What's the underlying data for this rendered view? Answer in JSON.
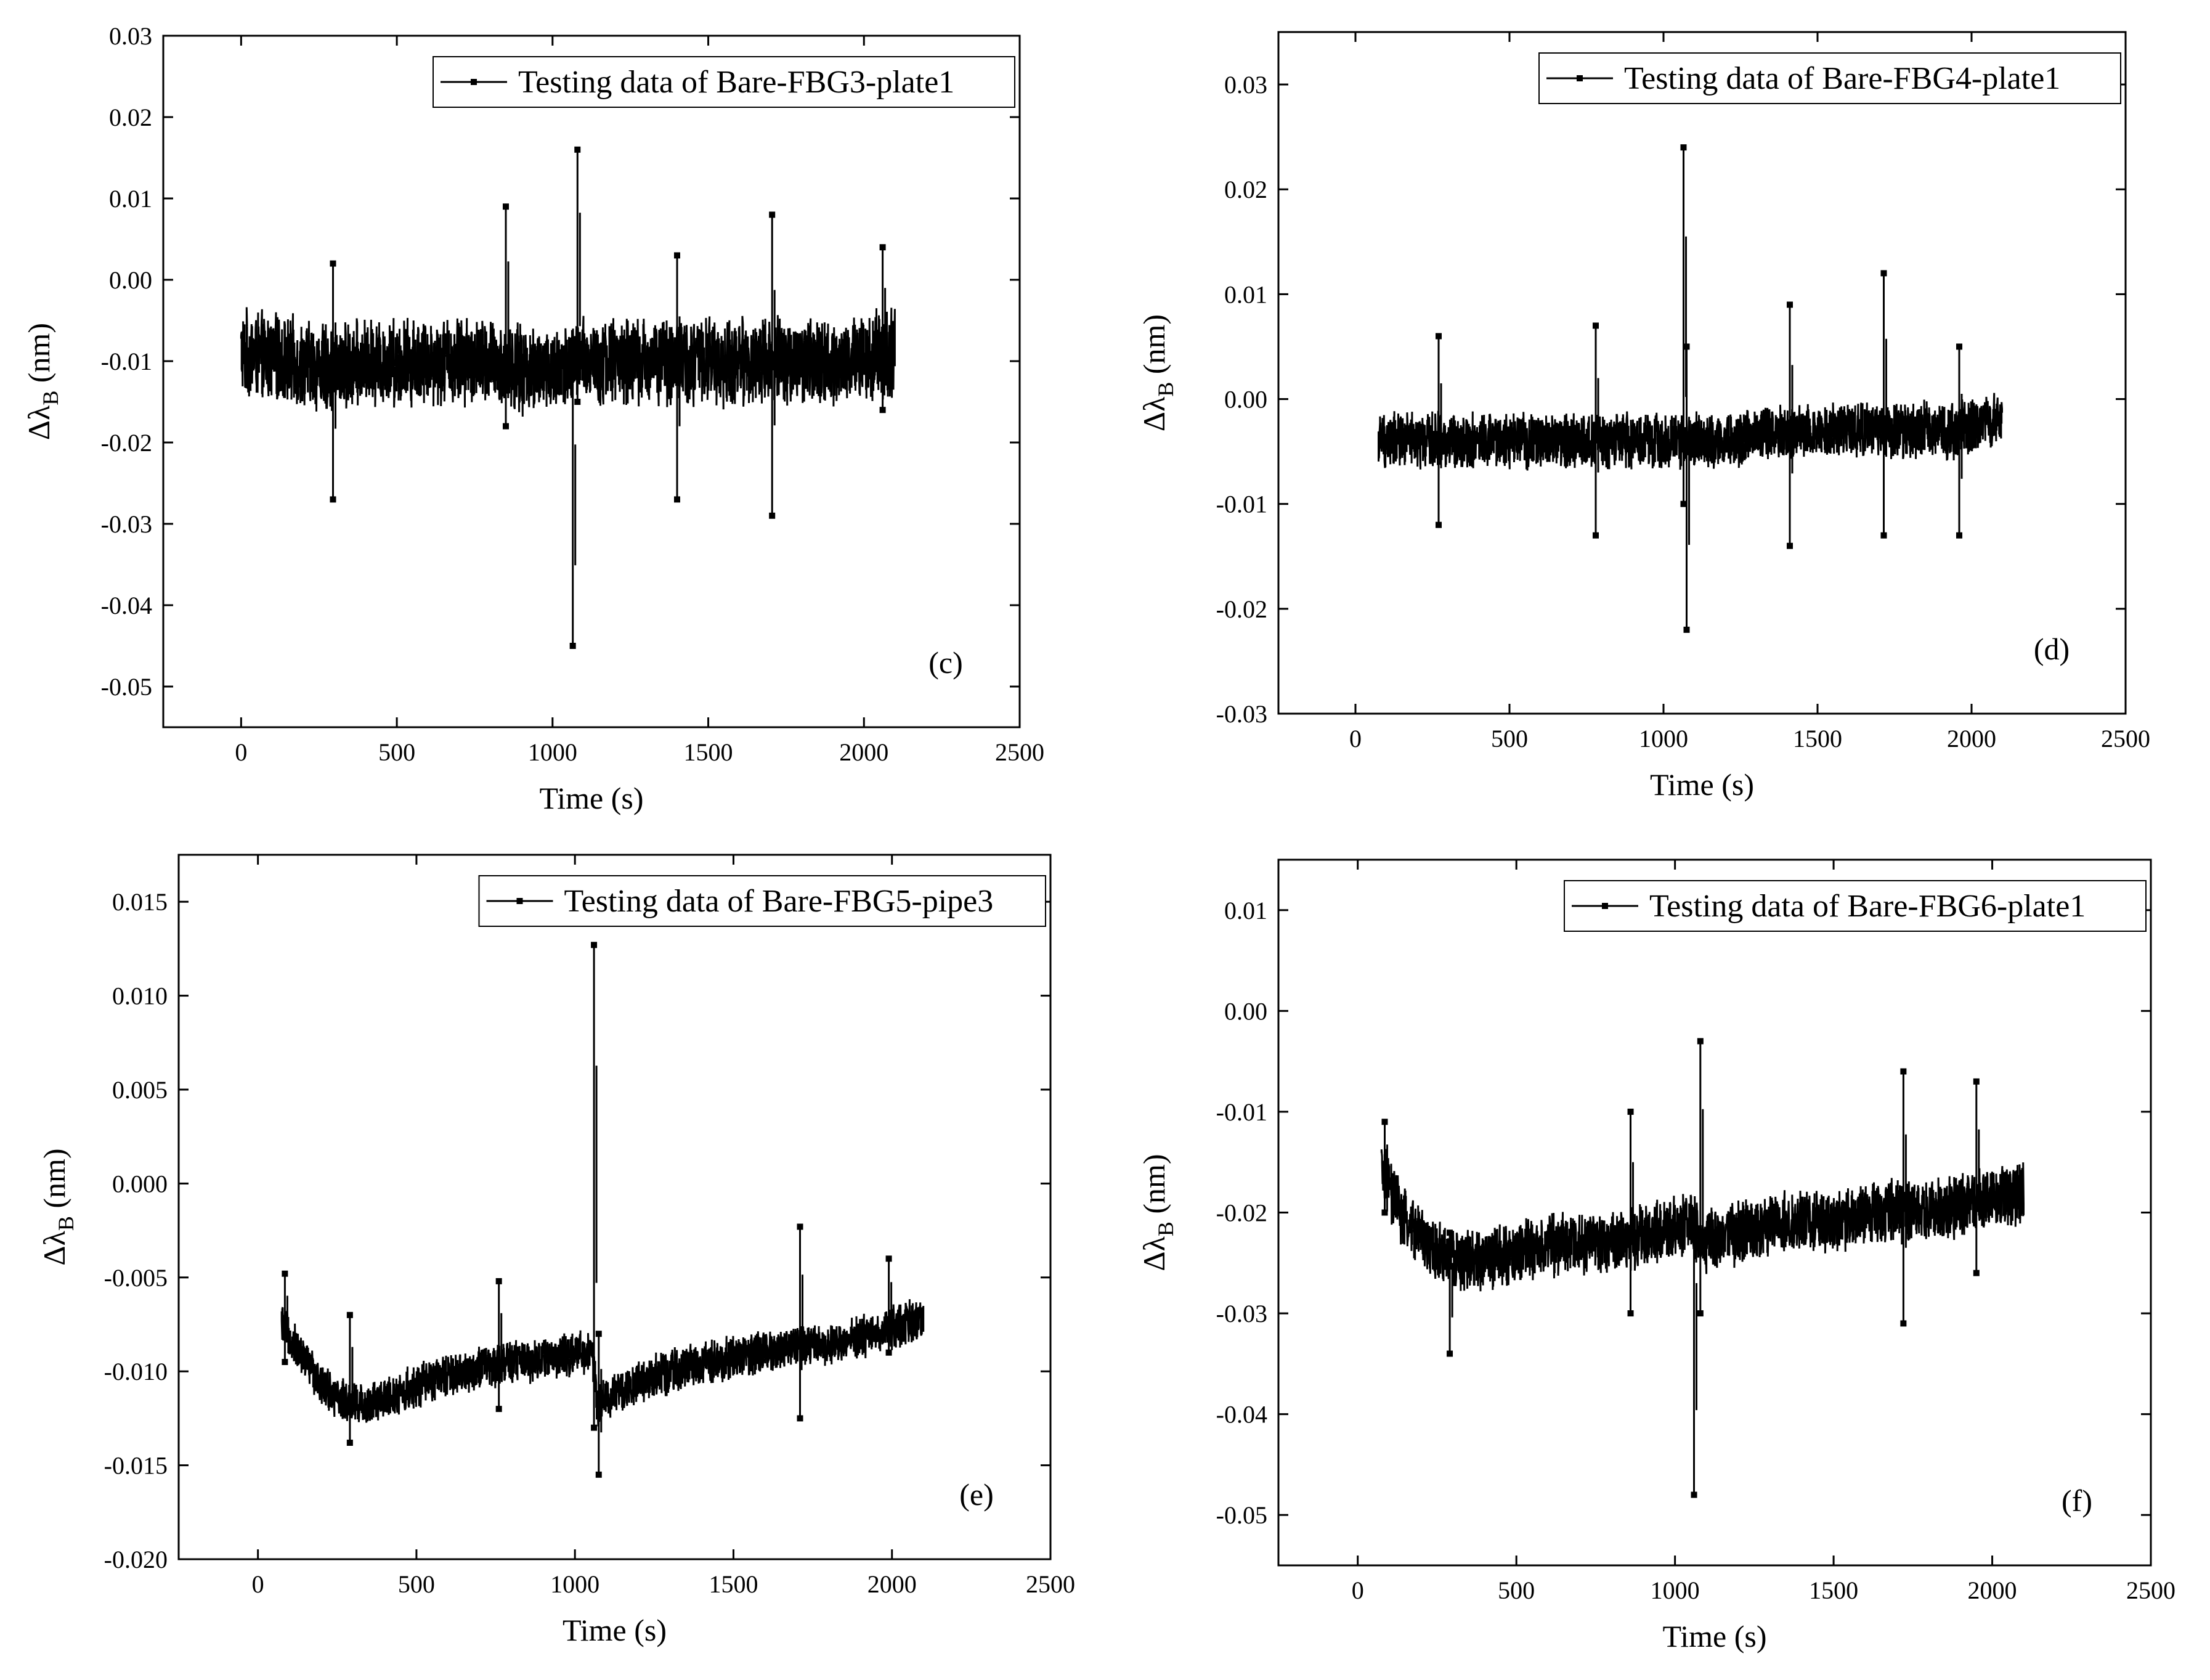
{
  "colors": {
    "series": "#000000",
    "background": "#ffffff"
  },
  "chart_data": [
    {
      "type": "line",
      "panel": "(c)",
      "legend": "Testing data of Bare-FBG3-plate1",
      "legend_position": "top-right",
      "xlabel": "Time (s)",
      "ylabel_main": "Δλ",
      "ylabel_sub": "B",
      "ylabel_unit": " (nm)",
      "xlim": [
        -250,
        2500
      ],
      "ylim": [
        -0.055,
        0.03
      ],
      "xticks": [
        0,
        500,
        1000,
        1500,
        2000,
        2500
      ],
      "xtick_labels": [
        "0",
        "500",
        "1000",
        "1500",
        "2000",
        "2500"
      ],
      "yticks": [
        -0.05,
        -0.04,
        -0.03,
        -0.02,
        -0.01,
        0.0,
        0.01,
        0.02,
        0.03
      ],
      "ytick_labels": [
        "-0.05",
        "-0.04",
        "-0.03",
        "-0.02",
        "-0.01",
        "0.00",
        "0.01",
        "0.02",
        "0.03"
      ],
      "series": [
        {
          "name": "Testing data of Bare-FBG3-plate1",
          "x": [
            0,
            150,
            300,
            450,
            600,
            750,
            900,
            1050,
            1080,
            1200,
            1350,
            1500,
            1650,
            1800,
            1950,
            2100
          ],
          "mean": [
            -0.009,
            -0.01,
            -0.011,
            -0.01,
            -0.01,
            -0.01,
            -0.011,
            -0.011,
            -0.01,
            -0.01,
            -0.01,
            -0.01,
            -0.01,
            -0.01,
            -0.01,
            -0.009
          ],
          "spread": 0.006,
          "spikes": [
            {
              "x": 295,
              "min": -0.027,
              "max": 0.002
            },
            {
              "x": 850,
              "min": -0.018,
              "max": 0.009
            },
            {
              "x": 1065,
              "min": -0.045,
              "max": -0.012
            },
            {
              "x": 1080,
              "min": -0.015,
              "max": 0.016
            },
            {
              "x": 1400,
              "min": -0.027,
              "max": 0.003
            },
            {
              "x": 1705,
              "min": -0.029,
              "max": 0.008
            },
            {
              "x": 2060,
              "min": -0.016,
              "max": 0.004
            }
          ]
        }
      ]
    },
    {
      "type": "line",
      "panel": "(d)",
      "legend": "Testing data of Bare-FBG4-plate1",
      "legend_position": "top-right",
      "xlabel": "Time (s)",
      "ylabel_main": "Δλ",
      "ylabel_sub": "B",
      "ylabel_unit": " (nm)",
      "xlim": [
        -250,
        2500
      ],
      "ylim": [
        -0.03,
        0.035
      ],
      "xticks": [
        0,
        500,
        1000,
        1500,
        2000,
        2500
      ],
      "xtick_labels": [
        "0",
        "500",
        "1000",
        "1500",
        "2000",
        "2500"
      ],
      "yticks": [
        -0.03,
        -0.02,
        -0.01,
        0.0,
        0.01,
        0.02,
        0.03
      ],
      "ytick_labels": [
        "-0.03",
        "-0.02",
        "-0.01",
        "0.00",
        "0.01",
        "0.02",
        "0.03"
      ],
      "series": [
        {
          "name": "Testing data of Bare-FBG4-plate1",
          "x": [
            75,
            200,
            350,
            500,
            650,
            800,
            950,
            1060,
            1080,
            1200,
            1350,
            1500,
            1650,
            1800,
            1950,
            2100
          ],
          "mean": [
            -0.004,
            -0.004,
            -0.004,
            -0.004,
            -0.004,
            -0.004,
            -0.004,
            -0.004,
            -0.004,
            -0.004,
            -0.003,
            -0.003,
            -0.003,
            -0.003,
            -0.003,
            -0.002
          ],
          "spread": 0.003,
          "spikes": [
            {
              "x": 270,
              "min": -0.012,
              "max": 0.006
            },
            {
              "x": 780,
              "min": -0.013,
              "max": 0.007
            },
            {
              "x": 1065,
              "min": -0.01,
              "max": 0.024
            },
            {
              "x": 1075,
              "min": -0.022,
              "max": 0.005
            },
            {
              "x": 1410,
              "min": -0.014,
              "max": 0.009
            },
            {
              "x": 1715,
              "min": -0.013,
              "max": 0.012
            },
            {
              "x": 1960,
              "min": -0.013,
              "max": 0.005
            }
          ]
        }
      ]
    },
    {
      "type": "line",
      "panel": "(e)",
      "legend": "Testing data of Bare-FBG5-pipe3",
      "legend_position": "top-right",
      "xlabel": "Time (s)",
      "ylabel_main": "Δλ",
      "ylabel_sub": "B",
      "ylabel_unit": " (nm)",
      "xlim": [
        -250,
        2500
      ],
      "ylim": [
        -0.02,
        0.0175
      ],
      "xticks": [
        0,
        500,
        1000,
        1500,
        2000,
        2500
      ],
      "xtick_labels": [
        "0",
        "500",
        "1000",
        "1500",
        "2000",
        "2500"
      ],
      "yticks": [
        -0.02,
        -0.015,
        -0.01,
        -0.005,
        0.0,
        0.005,
        0.01,
        0.015
      ],
      "ytick_labels": [
        "-0.020",
        "-0.015",
        "-0.010",
        "-0.005",
        "0.000",
        "0.005",
        "0.010",
        "0.015"
      ],
      "series": [
        {
          "name": "Testing data of Bare-FBG5-pipe3",
          "x": [
            75,
            150,
            250,
            350,
            500,
            650,
            800,
            950,
            1055,
            1070,
            1200,
            1350,
            1500,
            1650,
            1800,
            1950,
            2100
          ],
          "mean": [
            -0.0075,
            -0.0095,
            -0.0115,
            -0.0118,
            -0.0108,
            -0.01,
            -0.0095,
            -0.0092,
            -0.009,
            -0.0118,
            -0.0105,
            -0.0098,
            -0.0092,
            -0.0088,
            -0.0085,
            -0.008,
            -0.0072
          ],
          "spread": 0.0013,
          "spikes": [
            {
              "x": 85,
              "min": -0.0095,
              "max": -0.0048
            },
            {
              "x": 290,
              "min": -0.0138,
              "max": -0.007
            },
            {
              "x": 760,
              "min": -0.012,
              "max": -0.0052
            },
            {
              "x": 1060,
              "min": -0.013,
              "max": 0.0127
            },
            {
              "x": 1075,
              "min": -0.0155,
              "max": -0.008
            },
            {
              "x": 1710,
              "min": -0.0125,
              "max": -0.0023
            },
            {
              "x": 1990,
              "min": -0.009,
              "max": -0.004
            }
          ]
        }
      ]
    },
    {
      "type": "line",
      "panel": "(f)",
      "legend": "Testing data of Bare-FBG6-plate1",
      "legend_position": "top-right",
      "xlabel": "Time (s)",
      "ylabel_main": "Δλ",
      "ylabel_sub": "B",
      "ylabel_unit": " (nm)",
      "xlim": [
        -250,
        2500
      ],
      "ylim": [
        -0.055,
        0.015
      ],
      "xticks": [
        0,
        500,
        1000,
        1500,
        2000,
        2500
      ],
      "xtick_labels": [
        "0",
        "500",
        "1000",
        "1500",
        "2000",
        "2500"
      ],
      "yticks": [
        -0.05,
        -0.04,
        -0.03,
        -0.02,
        -0.01,
        0.0,
        0.01
      ],
      "ytick_labels": [
        "-0.05",
        "-0.04",
        "-0.03",
        "-0.02",
        "-0.01",
        "0.00",
        "0.01"
      ],
      "series": [
        {
          "name": "Testing data of Bare-FBG6-plate1",
          "x": [
            75,
            150,
            250,
            350,
            500,
            650,
            800,
            950,
            1055,
            1075,
            1200,
            1350,
            1500,
            1650,
            1800,
            1950,
            2100
          ],
          "mean": [
            -0.016,
            -0.021,
            -0.024,
            -0.025,
            -0.024,
            -0.023,
            -0.023,
            -0.022,
            -0.021,
            -0.023,
            -0.022,
            -0.021,
            -0.021,
            -0.02,
            -0.02,
            -0.019,
            -0.018
          ],
          "spread": 0.0035,
          "spikes": [
            {
              "x": 85,
              "min": -0.02,
              "max": -0.011
            },
            {
              "x": 290,
              "min": -0.034,
              "max": -0.022
            },
            {
              "x": 860,
              "min": -0.03,
              "max": -0.01
            },
            {
              "x": 1060,
              "min": -0.048,
              "max": -0.02
            },
            {
              "x": 1080,
              "min": -0.03,
              "max": -0.003
            },
            {
              "x": 1720,
              "min": -0.031,
              "max": -0.006
            },
            {
              "x": 1950,
              "min": -0.026,
              "max": -0.007
            }
          ]
        }
      ]
    }
  ]
}
